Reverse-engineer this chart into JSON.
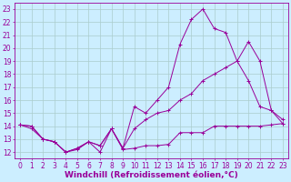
{
  "xlabel": "Windchill (Refroidissement éolien,°C)",
  "bg_color": "#cceeff",
  "line_color": "#990099",
  "grid_color": "#aacccc",
  "xlim": [
    -0.5,
    23.5
  ],
  "ylim": [
    11.5,
    23.5
  ],
  "yticks": [
    12,
    13,
    14,
    15,
    16,
    17,
    18,
    19,
    20,
    21,
    22,
    23
  ],
  "xticks": [
    0,
    1,
    2,
    3,
    4,
    5,
    6,
    7,
    8,
    9,
    10,
    11,
    12,
    13,
    14,
    15,
    16,
    17,
    18,
    19,
    20,
    21,
    22,
    23
  ],
  "line1_x": [
    0,
    1,
    2,
    3,
    4,
    5,
    6,
    7,
    8,
    9,
    10,
    11,
    12,
    13,
    14,
    15,
    16,
    17,
    18,
    19,
    20,
    21,
    22,
    23
  ],
  "line1_y": [
    14.1,
    13.8,
    13.0,
    12.8,
    12.0,
    12.2,
    12.8,
    12.5,
    13.8,
    12.2,
    12.3,
    12.5,
    12.5,
    12.6,
    13.5,
    13.5,
    13.5,
    14.0,
    14.0,
    14.0,
    14.0,
    14.0,
    14.1,
    14.2
  ],
  "line2_x": [
    0,
    1,
    2,
    3,
    4,
    5,
    6,
    7,
    8,
    9,
    10,
    11,
    12,
    13,
    14,
    15,
    16,
    17,
    18,
    19,
    20,
    21,
    22,
    23
  ],
  "line2_y": [
    14.1,
    14.0,
    13.0,
    12.8,
    12.0,
    12.3,
    12.8,
    12.5,
    13.8,
    12.3,
    13.8,
    14.5,
    15.0,
    15.2,
    16.0,
    16.5,
    17.5,
    18.0,
    18.5,
    19.0,
    17.5,
    15.5,
    15.2,
    14.5
  ],
  "line3_x": [
    0,
    1,
    2,
    3,
    4,
    5,
    6,
    7,
    8,
    9,
    10,
    11,
    12,
    13,
    14,
    15,
    16,
    17,
    18,
    19,
    20,
    21,
    22,
    23
  ],
  "line3_y": [
    14.1,
    14.0,
    13.0,
    12.8,
    12.0,
    12.3,
    12.8,
    12.0,
    13.8,
    12.3,
    15.5,
    15.0,
    16.0,
    17.0,
    20.3,
    22.2,
    23.0,
    21.5,
    21.2,
    19.0,
    20.5,
    19.0,
    15.2,
    14.2
  ],
  "tick_fontsize": 5.5,
  "label_fontsize": 6.5
}
